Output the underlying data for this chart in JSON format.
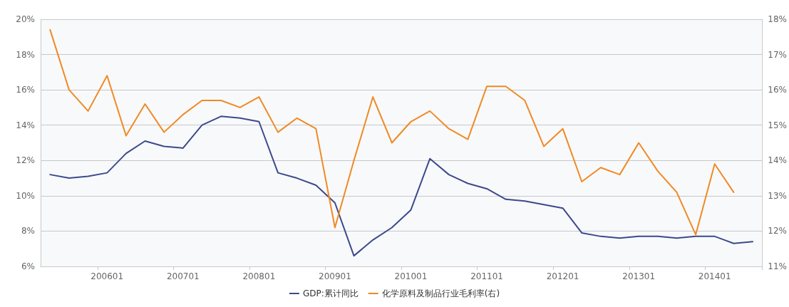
{
  "chart_data": {
    "type": "line",
    "categories": [
      null,
      null,
      null,
      "200601",
      null,
      null,
      null,
      "200701",
      null,
      null,
      null,
      "200801",
      null,
      null,
      null,
      "200901",
      null,
      null,
      null,
      "201001",
      null,
      null,
      null,
      "201101",
      null,
      null,
      null,
      "201201",
      null,
      null,
      null,
      "201301",
      null,
      null,
      null,
      "201401",
      null,
      null
    ],
    "series": [
      {
        "name": "GDP:累计同比",
        "color": "#3b4a8c",
        "values": [
          11.2,
          11.0,
          11.1,
          11.3,
          12.4,
          13.1,
          12.8,
          12.7,
          14.0,
          14.5,
          14.4,
          14.2,
          11.3,
          11.0,
          10.6,
          9.6,
          6.6,
          7.5,
          8.2,
          9.2,
          12.1,
          11.2,
          10.7,
          10.4,
          9.8,
          9.7,
          9.5,
          9.3,
          7.9,
          7.7,
          7.6,
          7.7,
          7.7,
          7.6,
          7.7,
          7.7,
          7.3,
          7.4
        ]
      },
      {
        "name": "化学原料及制品行业毛利率(右)",
        "color": "#f08a24",
        "axis": "y2",
        "values": [
          17.7,
          16.0,
          15.4,
          16.4,
          14.7,
          15.6,
          14.8,
          15.3,
          15.7,
          15.7,
          15.5,
          15.8,
          14.8,
          15.2,
          14.9,
          12.1,
          14.0,
          15.8,
          14.5,
          15.1,
          15.4,
          14.9,
          14.6,
          16.1,
          16.1,
          15.7,
          14.4,
          14.9,
          13.4,
          13.8,
          13.6,
          14.5,
          13.7,
          13.1,
          11.9,
          13.9,
          13.1,
          null
        ]
      }
    ],
    "ylim": [
      6,
      20
    ],
    "yticks": [
      {
        "value": 6,
        "label": "6%"
      },
      {
        "value": 8,
        "label": "8%"
      },
      {
        "value": 10,
        "label": "10%"
      },
      {
        "value": 12,
        "label": "12%"
      },
      {
        "value": 14,
        "label": "14%"
      },
      {
        "value": 16,
        "label": "16%"
      },
      {
        "value": 18,
        "label": "18%"
      },
      {
        "value": 20,
        "label": "20%"
      }
    ],
    "y2lim": [
      11,
      18
    ],
    "y2ticks": [
      {
        "value": 11,
        "label": "11%"
      },
      {
        "value": 12,
        "label": "12%"
      },
      {
        "value": 13,
        "label": "13%"
      },
      {
        "value": 14,
        "label": "14%"
      },
      {
        "value": 15,
        "label": "15%"
      },
      {
        "value": 16,
        "label": "16%"
      },
      {
        "value": 17,
        "label": "17%"
      },
      {
        "value": 18,
        "label": "18%"
      }
    ],
    "grid": "y",
    "legend": "bottom",
    "marker": "none",
    "line_style": "solid"
  }
}
